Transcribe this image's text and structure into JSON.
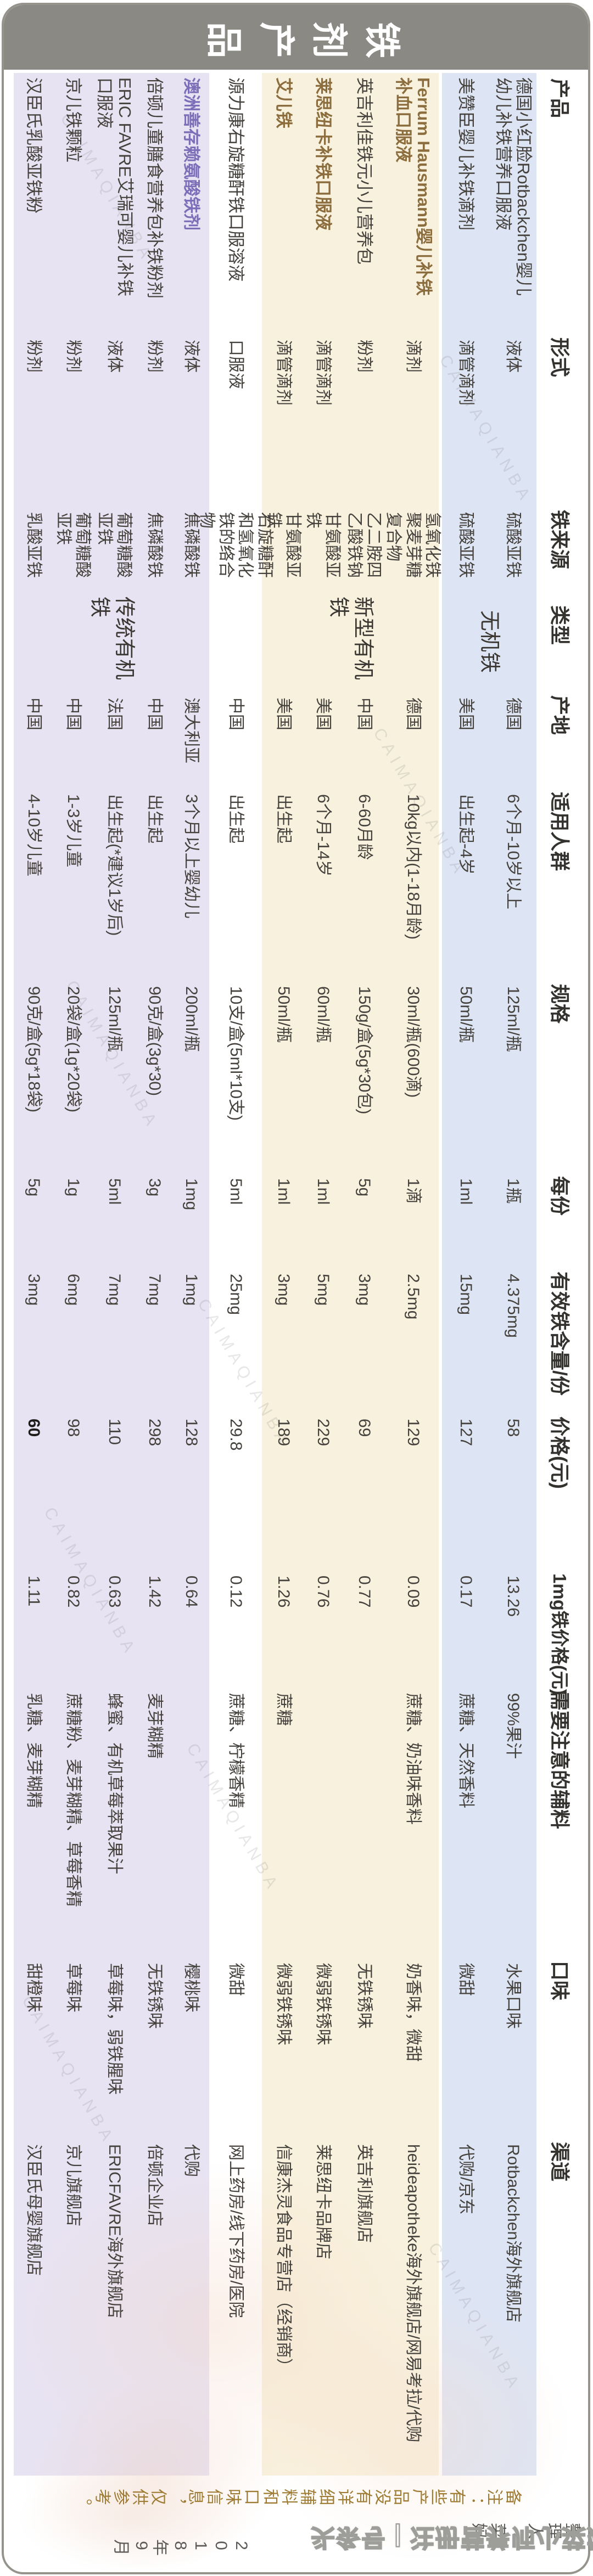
{
  "title": "铁剂产品",
  "watermark_text": "CAIMAQIANBA",
  "footer_watermark": "头条号 | 注册营养师小菜妈妈",
  "note_line1": "备注：有些产品没有详细辅料和口味信息，仅供参考。",
  "note_line2": "整理人：菜妈",
  "note_line3": "2018年9月",
  "colors": {
    "title_bar": "#8b8984",
    "band_blue": "#dde4f3",
    "band_cream": "#f8f1dd",
    "band_lavender": "#e7e3f3",
    "accent_brown": "#8c6d3d",
    "accent_purple": "#7c6fb8",
    "note_brown": "#9f7c33",
    "note_gray": "#5c5a56"
  },
  "chart_data": {
    "type": "table",
    "title": "铁剂产品",
    "headers": [
      "产品",
      "形式",
      "铁来源",
      "类型",
      "产地",
      "适用人群",
      "规格",
      "每份",
      "有效铁含量/份",
      "价格(元)",
      "1mg铁价格(元)",
      "需要注意的辅料",
      "口味",
      "渠道"
    ],
    "type_groups": [
      {
        "label": "无机铁",
        "from": 0,
        "to": 1
      },
      {
        "label": "新型有机铁",
        "from": 2,
        "to": 5
      },
      {
        "label": "传统有机铁",
        "from": 7,
        "to": 11
      }
    ],
    "products": [
      {
        "name": "德国小红脸Rotbackchen婴儿幼儿补铁营养口服液",
        "band": "blue",
        "emphasis": "none",
        "form": "液体",
        "source": "硫酸亚铁",
        "origin": "德国",
        "age": "6个月-10岁以上",
        "spec": "125ml/瓶",
        "serving": "1瓶",
        "iron": "4.375mg",
        "price": "58",
        "price_bold": false,
        "price_per_mg": "13.26",
        "additives": "99%果汁",
        "taste": "水果口味",
        "channel": "Rotbackchen海外旗舰店"
      },
      {
        "name": "美赞臣婴儿补铁滴剂",
        "band": "blue",
        "emphasis": "none",
        "form": "滴管滴剂",
        "source": "硫酸亚铁",
        "origin": "美国",
        "age": "出生起-4岁",
        "spec": "50ml/瓶",
        "serving": "1ml",
        "iron": "15mg",
        "price": "127",
        "price_bold": false,
        "price_per_mg": "0.17",
        "additives": "蔗糖、天然香料",
        "taste": "微甜",
        "channel": "代购/京东"
      },
      {
        "name": "Ferrum Hausmann婴儿补铁补血口服液",
        "band": "cream",
        "emphasis": "brown",
        "form": "滴剂",
        "source": "氢氧化铁聚麦芽糖复合物",
        "origin": "德国",
        "age": "10kg以内(1-18月龄)",
        "spec": "30ml/瓶(600滴)",
        "serving": "1滴",
        "iron": "2.5mg",
        "price": "129",
        "price_bold": false,
        "price_per_mg": "0.09",
        "additives": "蔗糖、奶油味香料",
        "taste": "奶香味，微甜",
        "channel": "heideapotheke海外旗舰店/网易考拉/代购"
      },
      {
        "name": "英吉利佳铁元小儿营养包",
        "band": "cream",
        "emphasis": "none",
        "form": "粉剂",
        "source": "乙二胺四乙酸铁钠",
        "origin": "中国",
        "age": "6-60月龄",
        "spec": "150g/盒(5g*30包)",
        "serving": "5g",
        "iron": "3mg",
        "price": "69",
        "price_bold": false,
        "price_per_mg": "0.77",
        "additives": "",
        "taste": "无铁锈味",
        "channel": "英吉利旗舰店"
      },
      {
        "name": "莱思纽卡补铁口服液",
        "band": "cream",
        "emphasis": "brown",
        "form": "滴管滴剂",
        "source": "甘氨酸亚铁",
        "origin": "美国",
        "age": "6个月-14岁",
        "spec": "60ml/瓶",
        "serving": "1ml",
        "iron": "5mg",
        "price": "229",
        "price_bold": false,
        "price_per_mg": "0.76",
        "additives": "",
        "taste": "微弱铁锈味",
        "channel": "莱思纽卡品牌店"
      },
      {
        "name": "艾儿铁",
        "band": "cream",
        "emphasis": "brown",
        "form": "滴管滴剂",
        "source": "甘氨酸亚铁",
        "origin": "美国",
        "age": "出生起",
        "spec": "50ml/瓶",
        "serving": "1ml",
        "iron": "3mg",
        "price": "189",
        "price_bold": false,
        "price_per_mg": "1.26",
        "additives": "蔗糖",
        "taste": "微弱铁锈味",
        "channel": "信康杰灵食品专营店（经销商）"
      },
      {
        "name": "源力康右旋糖酐铁口服溶液",
        "band": "white",
        "emphasis": "none",
        "form": "口服液",
        "source": "右旋糖酐和氢氧化铁的络合物",
        "origin": "中国",
        "age": "出生起",
        "spec": "10支/盒(5ml*10支)",
        "serving": "5ml",
        "iron": "25mg",
        "price": "29.8",
        "price_bold": false,
        "price_per_mg": "0.12",
        "additives": "蔗糖、柠檬香精",
        "taste": "微甜",
        "channel": "网上药房/线下药房/医院"
      },
      {
        "name": "澳洲善存赖氨酸铁剂",
        "band": "lavender",
        "emphasis": "purple",
        "form": "液体",
        "source": "焦磷酸铁",
        "origin": "澳大利亚",
        "age": "3个月以上婴幼儿",
        "spec": "200ml/瓶",
        "serving": "1mg",
        "iron": "1mg",
        "price": "128",
        "price_bold": false,
        "price_per_mg": "0.64",
        "additives": "",
        "taste": "樱桃味",
        "channel": "代购"
      },
      {
        "name": "倍顿儿童膳食营养包补铁粉剂",
        "band": "lavender",
        "emphasis": "none",
        "form": "粉剂",
        "source": "焦磷酸铁",
        "origin": "中国",
        "age": "出生起",
        "spec": "90克/盒(3g*30)",
        "serving": "3g",
        "iron": "7mg",
        "price": "298",
        "price_bold": false,
        "price_per_mg": "1.42",
        "additives": "麦芽糊精",
        "taste": "无铁锈味",
        "channel": "倍顿企业店"
      },
      {
        "name": "ERIC FAVRE艾瑞可婴儿补铁口服液",
        "band": "lavender",
        "emphasis": "none",
        "form": "液体",
        "source": "葡萄糖酸亚铁",
        "origin": "法国",
        "age": "出生起(*建议1岁后)",
        "spec": "125ml/瓶",
        "serving": "5ml",
        "iron": "7mg",
        "price": "110",
        "price_bold": false,
        "price_per_mg": "0.63",
        "additives": "蜂蜜、有机草莓萃取果汁",
        "taste": "草莓味，弱铁腥味",
        "channel": "ERICFAVRE海外旗舰店"
      },
      {
        "name": "京儿铁颗粒",
        "band": "lavender",
        "emphasis": "none",
        "form": "粉剂",
        "source": "葡萄糖酸亚铁",
        "origin": "中国",
        "age": "1-3岁儿童",
        "spec": "20袋/盒(1g*20袋)",
        "serving": "1g",
        "iron": "6mg",
        "price": "98",
        "price_bold": false,
        "price_per_mg": "0.82",
        "additives": "蔗糖粉、麦芽糊精、草莓香精",
        "taste": "草莓味",
        "channel": "京儿旗舰店"
      },
      {
        "name": "汉臣氏乳酸亚铁粉",
        "band": "lavender",
        "emphasis": "none",
        "form": "粉剂",
        "source": "乳酸亚铁",
        "origin": "中国",
        "age": "4-10岁儿童",
        "spec": "90克/盒(5g*18袋)",
        "serving": "5g",
        "iron": "3mg",
        "price": "60",
        "price_bold": true,
        "price_per_mg": "1.11",
        "additives": "乳糖、麦芽糊精",
        "taste": "甜橙味",
        "channel": "汉臣氏母婴旗舰店"
      }
    ]
  }
}
